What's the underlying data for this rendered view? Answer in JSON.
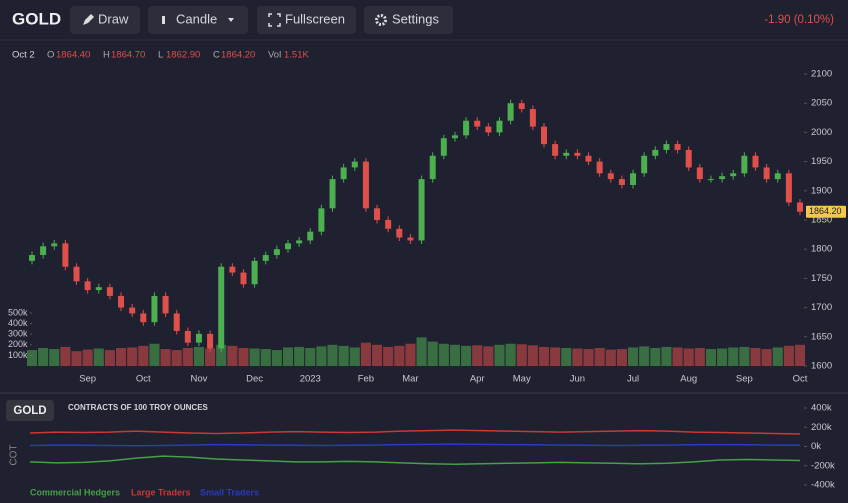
{
  "toolbar": {
    "symbol": "GOLD",
    "buttons": [
      "Draw",
      "Candle",
      "Fullscreen",
      "Settings"
    ],
    "change": "-1.90 (0.10%)"
  },
  "ohlc_info": {
    "date": "Oct 2",
    "items": [
      {
        "key": "O",
        "value": "1864.40"
      },
      {
        "key": "H",
        "value": "1864.70"
      },
      {
        "key": "L",
        "value": "1862.90"
      },
      {
        "key": "C",
        "value": "1864.20"
      },
      {
        "key": "Vol",
        "value": "1.51K"
      }
    ]
  },
  "chart_data": [
    {
      "type": "candlestick",
      "categories": [
        null,
        null,
        null,
        null,
        null,
        "Sep",
        null,
        null,
        null,
        null,
        "Oct",
        null,
        null,
        null,
        null,
        "Nov",
        null,
        null,
        null,
        null,
        "Dec",
        null,
        null,
        null,
        null,
        "2023",
        null,
        null,
        null,
        null,
        "Feb",
        null,
        null,
        null,
        "Mar",
        null,
        null,
        null,
        null,
        null,
        "Apr",
        null,
        null,
        null,
        "May",
        null,
        null,
        null,
        null,
        "Jun",
        null,
        null,
        null,
        null,
        "Jul",
        null,
        null,
        null,
        null,
        "Aug",
        null,
        null,
        null,
        null,
        "Sep",
        null,
        null,
        null,
        null,
        "Oct"
      ],
      "open": [
        1780,
        1790,
        1805,
        1810,
        1770,
        1745,
        1730,
        1735,
        1720,
        1700,
        1690,
        1675,
        1720,
        1690,
        1660,
        1640,
        1655,
        1630,
        1770,
        1760,
        1740,
        1780,
        1790,
        1800,
        1810,
        1815,
        1830,
        1870,
        1920,
        1940,
        1950,
        1870,
        1850,
        1835,
        1820,
        1815,
        1920,
        1960,
        1990,
        1995,
        2020,
        2010,
        2000,
        2020,
        2050,
        2040,
        2010,
        1980,
        1960,
        1965,
        1960,
        1950,
        1930,
        1920,
        1910,
        1930,
        1960,
        1970,
        1980,
        1970,
        1940,
        1920,
        1920,
        1925,
        1930,
        1960,
        1940,
        1920,
        1930,
        1880
      ],
      "high": [
        1796,
        1811,
        1816,
        1816,
        1776,
        1751,
        1741,
        1741,
        1726,
        1706,
        1696,
        1726,
        1726,
        1696,
        1666,
        1661,
        1661,
        1776,
        1776,
        1766,
        1786,
        1796,
        1806,
        1816,
        1821,
        1836,
        1876,
        1926,
        1946,
        1956,
        1956,
        1876,
        1856,
        1841,
        1826,
        1926,
        1966,
        1996,
        2001,
        2026,
        2026,
        2016,
        2026,
        2056,
        2056,
        2046,
        2016,
        1986,
        1971,
        1971,
        1966,
        1956,
        1936,
        1926,
        1936,
        1966,
        1976,
        1986,
        1986,
        1976,
        1946,
        1926,
        1931,
        1936,
        1966,
        1966,
        1946,
        1936,
        1936,
        1886
      ],
      "low": [
        1774,
        1784,
        1799,
        1764,
        1739,
        1724,
        1724,
        1714,
        1694,
        1684,
        1669,
        1669,
        1684,
        1654,
        1634,
        1634,
        1624,
        1624,
        1754,
        1734,
        1734,
        1774,
        1784,
        1794,
        1804,
        1809,
        1824,
        1864,
        1914,
        1934,
        1864,
        1844,
        1829,
        1814,
        1809,
        1809,
        1914,
        1954,
        1984,
        1989,
        2004,
        1994,
        1994,
        2014,
        2034,
        2004,
        1974,
        1954,
        1954,
        1954,
        1944,
        1924,
        1914,
        1904,
        1904,
        1924,
        1954,
        1964,
        1964,
        1934,
        1914,
        1914,
        1914,
        1919,
        1924,
        1934,
        1914,
        1914,
        1874,
        1858.2
      ],
      "close": [
        1790,
        1805,
        1810,
        1770,
        1745,
        1730,
        1735,
        1720,
        1700,
        1690,
        1675,
        1720,
        1690,
        1660,
        1640,
        1655,
        1630,
        1770,
        1760,
        1740,
        1780,
        1790,
        1800,
        1810,
        1815,
        1830,
        1870,
        1920,
        1940,
        1950,
        1870,
        1850,
        1835,
        1820,
        1815,
        1920,
        1960,
        1990,
        1995,
        2020,
        2010,
        2000,
        2020,
        2050,
        2040,
        2010,
        1980,
        1960,
        1965,
        1960,
        1950,
        1930,
        1920,
        1910,
        1930,
        1960,
        1970,
        1980,
        1970,
        1940,
        1920,
        1920,
        1925,
        1930,
        1960,
        1940,
        1920,
        1930,
        1880,
        1864.2
      ],
      "up_color": "#4caf50",
      "down_color": "#e0504a",
      "ylim": [
        1600,
        2100
      ],
      "yticks": [
        1600,
        1650,
        1700,
        1750,
        1800,
        1850,
        1900,
        1950,
        2000,
        2050,
        2100
      ],
      "last_price": {
        "value": 1864.2,
        "label": "1864.20"
      },
      "volume": {
        "values": [
          150000,
          170000,
          160000,
          180000,
          140000,
          155000,
          165000,
          150000,
          170000,
          175000,
          190000,
          210000,
          160000,
          150000,
          170000,
          180000,
          165000,
          200000,
          190000,
          170000,
          165000,
          160000,
          150000,
          175000,
          180000,
          170000,
          185000,
          200000,
          190000,
          175000,
          220000,
          200000,
          180000,
          190000,
          210000,
          270000,
          230000,
          210000,
          200000,
          190000,
          195000,
          185000,
          200000,
          210000,
          205000,
          195000,
          180000,
          175000,
          170000,
          165000,
          160000,
          170000,
          155000,
          160000,
          175000,
          185000,
          170000,
          180000,
          175000,
          165000,
          170000,
          160000,
          165000,
          175000,
          180000,
          170000,
          160000,
          175000,
          190000,
          200000
        ],
        "ylim": [
          0,
          500000
        ],
        "yticks": [
          {
            "value": 100000,
            "label": "100k"
          },
          {
            "value": 200000,
            "label": "200k"
          },
          {
            "value": 300000,
            "label": "300k"
          },
          {
            "value": 400000,
            "label": "400k"
          },
          {
            "value": 500000,
            "label": "500k"
          }
        ]
      }
    },
    {
      "type": "line",
      "panel_button": "GOLD",
      "title": "CONTRACTS OF 100 TROY OUNCES",
      "ylabel": "COT",
      "ylim": [
        -400000,
        400000
      ],
      "yticks": [
        {
          "value": -400000,
          "label": "-400k"
        },
        {
          "value": -200000,
          "label": "-200k"
        },
        {
          "value": 0,
          "label": "0k"
        },
        {
          "value": 200000,
          "label": "200k"
        },
        {
          "value": 400000,
          "label": "400k"
        }
      ],
      "series": [
        {
          "name": "Commercial Hedgers",
          "color": "#46a046",
          "values": [
            -160000,
            -170000,
            -165000,
            -150000,
            -120000,
            -100000,
            -110000,
            -130000,
            -140000,
            -150000,
            -160000,
            -160000,
            -155000,
            -160000,
            -170000,
            -180000,
            -185000,
            -180000,
            -175000,
            -170000,
            -165000,
            -170000,
            -175000,
            -180000,
            -175000,
            -160000,
            -140000,
            -135000,
            -140000,
            -145000
          ]
        },
        {
          "name": "Large Traders",
          "color": "#c83a32",
          "values": [
            140000,
            150000,
            145000,
            150000,
            160000,
            150000,
            140000,
            135000,
            140000,
            150000,
            155000,
            150000,
            145000,
            150000,
            160000,
            165000,
            170000,
            165000,
            160000,
            155000,
            150000,
            155000,
            160000,
            165000,
            160000,
            150000,
            145000,
            140000,
            135000,
            130000
          ]
        },
        {
          "name": "Small Traders",
          "color": "#2a3ac0",
          "values": [
            10000,
            15000,
            12000,
            10000,
            8000,
            10000,
            15000,
            20000,
            18000,
            15000,
            12000,
            10000,
            12000,
            15000,
            20000,
            22000,
            25000,
            22000,
            20000,
            18000,
            15000,
            12000,
            10000,
            12000,
            15000,
            18000,
            20000,
            18000,
            15000,
            12000
          ]
        }
      ]
    }
  ]
}
